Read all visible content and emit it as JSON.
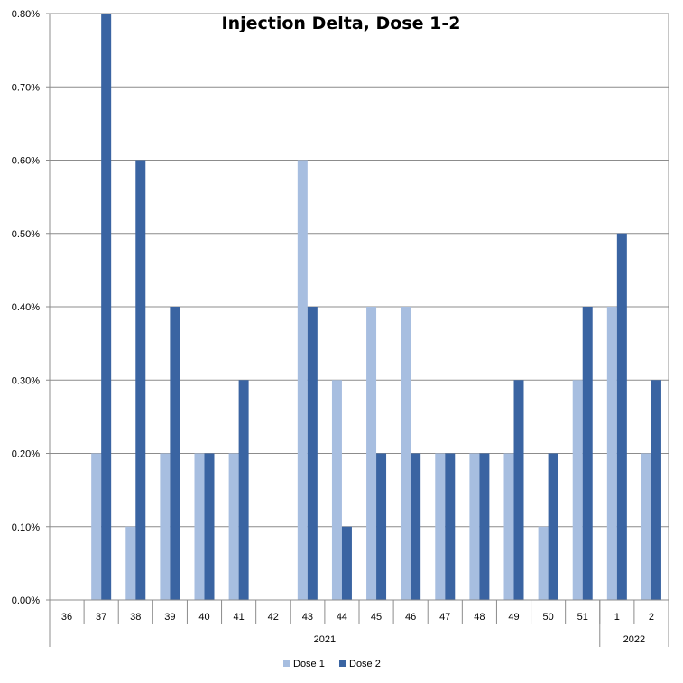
{
  "chart_data": {
    "type": "bar",
    "title": "Injection Delta, Dose 1-2",
    "categories": [
      "36",
      "37",
      "38",
      "39",
      "40",
      "41",
      "42",
      "43",
      "44",
      "45",
      "46",
      "47",
      "48",
      "49",
      "50",
      "51",
      "1",
      "2"
    ],
    "groups": [
      {
        "label": "2021",
        "count": 16
      },
      {
        "label": "2022",
        "count": 2
      }
    ],
    "series": [
      {
        "name": "Dose 1",
        "color": "#A7BEE0",
        "values": [
          0,
          0.002,
          0.001,
          0.002,
          0.002,
          0.002,
          0,
          0.006,
          0.003,
          0.004,
          0.004,
          0.002,
          0.002,
          0.002,
          0.001,
          0.003,
          0.004,
          0.002
        ]
      },
      {
        "name": "Dose 2",
        "color": "#3A64A2",
        "values": [
          0,
          0.008,
          0.006,
          0.004,
          0.002,
          0.003,
          0,
          0.004,
          0.001,
          0.002,
          0.002,
          0.002,
          0.002,
          0.003,
          0.002,
          0.004,
          0.005,
          0.003
        ]
      }
    ],
    "y_ticks": [
      "0.00%",
      "0.10%",
      "0.20%",
      "0.30%",
      "0.40%",
      "0.50%",
      "0.60%",
      "0.70%",
      "0.80%"
    ],
    "ylim": [
      0,
      0.008
    ],
    "grid": true,
    "legend_position": "bottom"
  }
}
